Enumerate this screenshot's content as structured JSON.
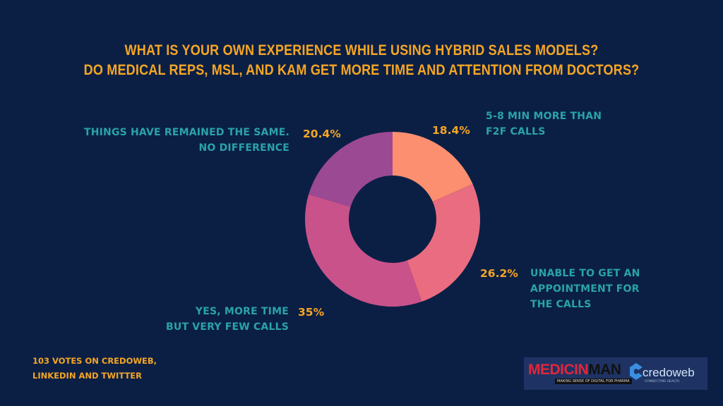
{
  "chart_data": {
    "type": "pie",
    "subtype": "donut",
    "title_lines": [
      "WHAT IS YOUR OWN EXPERIENCE WHILE USING HYBRID SALES MODELS?",
      "DO MEDICAL REPS, MSL, AND KAM GET MORE TIME AND ATTENTION FROM DOCTORS?"
    ],
    "slices": [
      {
        "label_lines": [
          "5-8 MIN MORE THAN",
          "F2F CALLS"
        ],
        "value": 18.4,
        "value_label": "18.4%",
        "color": "#fc8f6f"
      },
      {
        "label_lines": [
          "UNABLE TO GET AN",
          "APPOINTMENT FOR",
          "THE CALLS"
        ],
        "value": 26.2,
        "value_label": "26.2%",
        "color": "#ea6c80"
      },
      {
        "label_lines": [
          "YES, MORE TIME",
          "BUT VERY FEW CALLS"
        ],
        "value": 35,
        "value_label": "35%",
        "color": "#c9528b"
      },
      {
        "label_lines": [
          "THINGS HAVE REMAINED THE SAME.",
          "NO DIFFERENCE"
        ],
        "value": 20.4,
        "value_label": "20.4%",
        "color": "#9c4994"
      }
    ],
    "start_angle": "12 o'clock",
    "direction": "clockwise"
  },
  "footnote_lines": [
    "103 VOTES ON CREDOWEB,",
    "LINKEDIN AND TWITTER"
  ],
  "logos": {
    "medicinman": {
      "part1": "MEDICIN",
      "part2": "MAN",
      "tagline": "MAKING SENSE OF DIGITAL FOR PHARMA"
    },
    "credoweb": {
      "name": "credoweb",
      "tagline": "CONNECTING HEALTH"
    }
  },
  "colors": {
    "background": "#0b1f45",
    "title": "#f5a623",
    "label": "#2aa3a8",
    "percent": "#f5a623"
  }
}
